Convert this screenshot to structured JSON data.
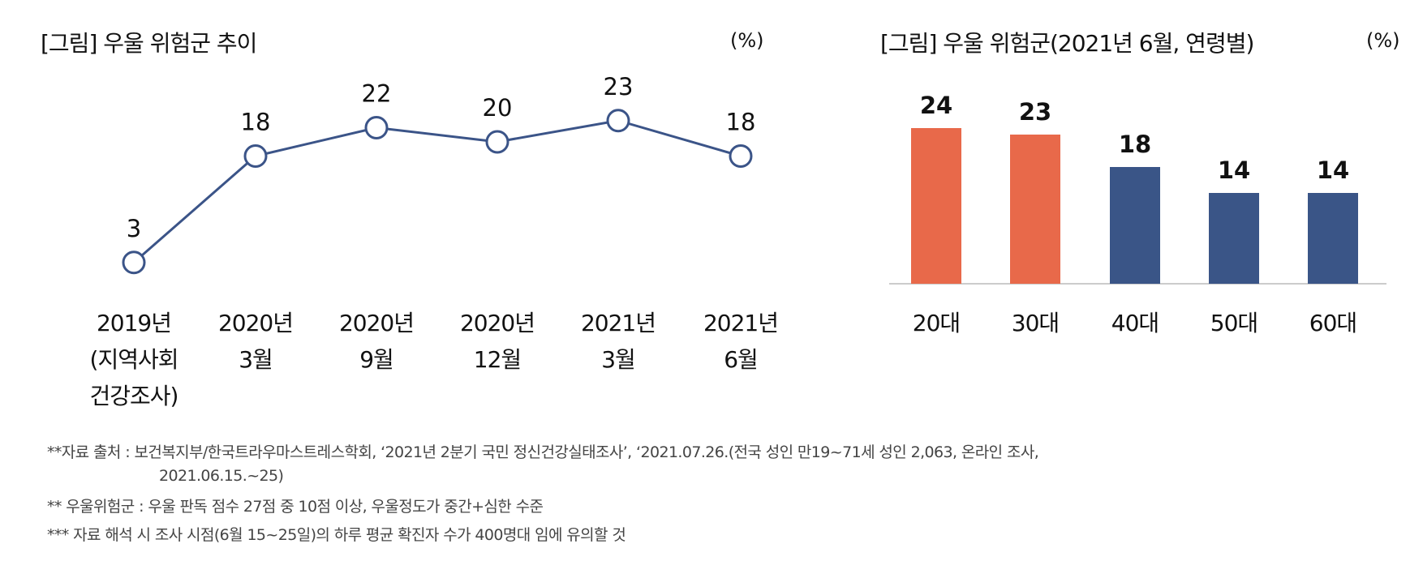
{
  "chart_data": [
    {
      "type": "line",
      "title": "[그림] 우울 위험군 추이",
      "unit": "(%)",
      "categories": [
        [
          "2019년",
          "(지역사회",
          "건강조사)"
        ],
        [
          "2020년",
          "3월"
        ],
        [
          "2020년",
          "9월"
        ],
        [
          "2020년",
          "12월"
        ],
        [
          "2021년",
          "3월"
        ],
        [
          "2021년",
          "6월"
        ]
      ],
      "values": [
        3,
        18,
        22,
        20,
        23,
        18
      ],
      "ylim": [
        0,
        25
      ],
      "color": "#3B5488"
    },
    {
      "type": "bar",
      "title": "[그림] 우울 위험군(2021년 6월, 연령별)",
      "unit": "(%)",
      "categories": [
        "20대",
        "30대",
        "40대",
        "50대",
        "60대"
      ],
      "values": [
        24,
        23,
        18,
        14,
        14
      ],
      "ylim": [
        0,
        25
      ],
      "colors": [
        "#E8694A",
        "#E8694A",
        "#3A5587",
        "#3A5587",
        "#3A5587"
      ]
    }
  ],
  "notes": [
    "**자료 출처 : 보건복지부/한국트라우마스트레스학회, ‘2021년 2분기 국민 정신건강실태조사’, ‘2021.07.26.(전국 성인 만19~71세 성인 2,063, 온라인 조사,",
    "2021.06.15.~25)",
    "** 우울위험군 : 우울 판독 점수 27점 중 10점 이상, 우울정도가 중간+심한 수준",
    "*** 자료 해석 시 조사 시점(6월 15~25일)의 하루 평균 확진자 수가 400명대 임에 유의할 것"
  ]
}
